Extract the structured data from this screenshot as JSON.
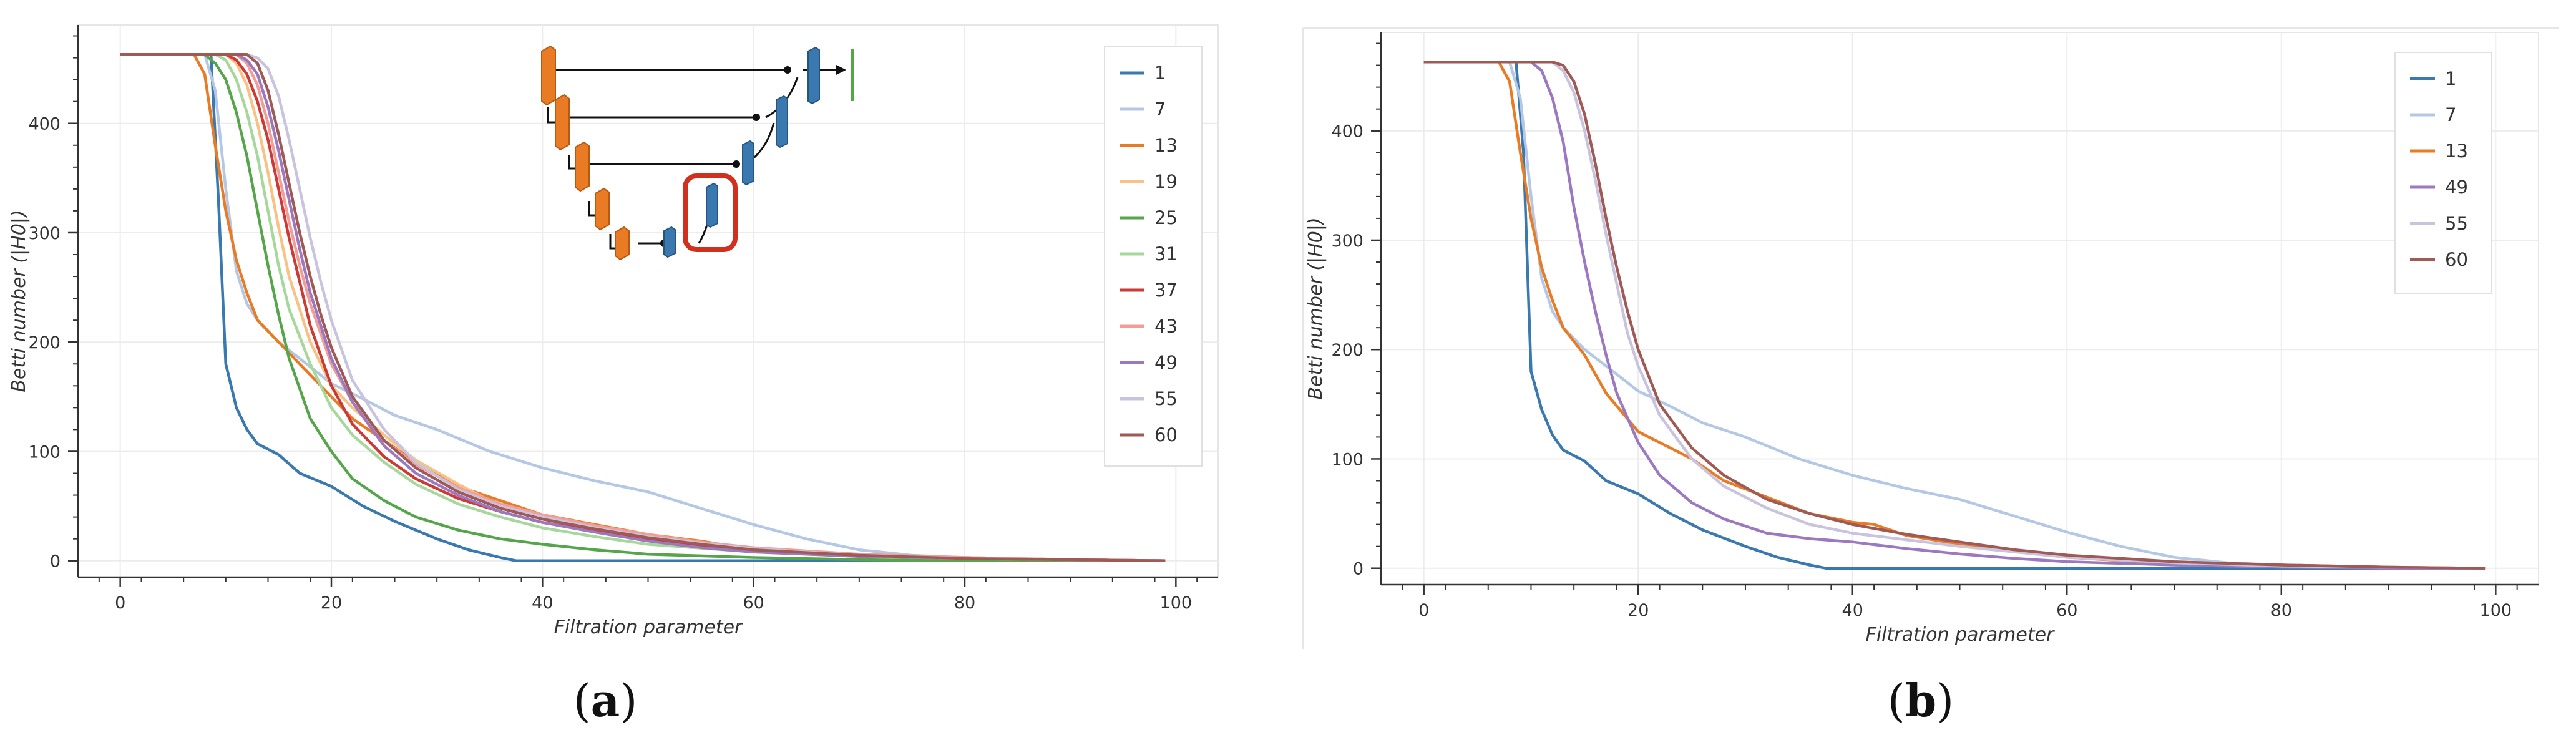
{
  "panels": [
    {
      "label_open": "(",
      "label_letter": "a",
      "label_close": ")"
    },
    {
      "label_open": "(",
      "label_letter": "b",
      "label_close": ")"
    }
  ],
  "colors": {
    "1": "#3a78b0",
    "7": "#b4c8e6",
    "13": "#e87b24",
    "19": "#f8c285",
    "25": "#55a64a",
    "31": "#a7d89b",
    "37": "#cc3a35",
    "43": "#f29e98",
    "49": "#9b78c0",
    "55": "#c9c3de",
    "60": "#a05a55"
  },
  "chart_data": [
    {
      "type": "line",
      "xlabel": "Filtration parameter",
      "ylabel": "Betti number (|H0|)",
      "xlim": [
        -4,
        104
      ],
      "ylim": [
        -15,
        490
      ],
      "xticks": [
        0,
        20,
        40,
        60,
        80,
        100
      ],
      "yticks": [
        0,
        100,
        200,
        300,
        400
      ],
      "grid": true,
      "legend": "top-right",
      "inset": "network-architecture-diagram",
      "series": [
        {
          "name": "1",
          "x": [
            0,
            8,
            8.6,
            9.3,
            10,
            11,
            12,
            13,
            15,
            17,
            20,
            23,
            26,
            30,
            33,
            36,
            37.5,
            40,
            50,
            60,
            80,
            99
          ],
          "y": [
            463,
            463,
            463,
            330,
            180,
            140,
            120,
            107,
            97,
            80,
            68,
            50,
            36,
            20,
            10,
            3,
            0,
            0,
            0,
            0,
            0,
            0
          ]
        },
        {
          "name": "7",
          "x": [
            0,
            8,
            9,
            10,
            11,
            12,
            13,
            14,
            15,
            17,
            20,
            23,
            26,
            30,
            35,
            40,
            45,
            50,
            55,
            60,
            65,
            70,
            75,
            80,
            90,
            99
          ],
          "y": [
            463,
            463,
            430,
            340,
            265,
            235,
            220,
            210,
            200,
            185,
            162,
            148,
            133,
            120,
            100,
            85,
            73,
            63,
            48,
            33,
            20,
            10,
            5,
            3,
            1,
            0
          ]
        },
        {
          "name": "13",
          "x": [
            0,
            7,
            8,
            9,
            10,
            11,
            12,
            13,
            15,
            17,
            20,
            22,
            25,
            28,
            32,
            36,
            40,
            45,
            50,
            55,
            60,
            65,
            70,
            80,
            90,
            99
          ],
          "y": [
            463,
            463,
            445,
            380,
            320,
            275,
            245,
            220,
            200,
            180,
            150,
            130,
            110,
            90,
            68,
            55,
            42,
            33,
            24,
            18,
            10,
            7,
            5,
            3,
            1,
            0
          ]
        },
        {
          "name": "19",
          "x": [
            0,
            10,
            11,
            12,
            13,
            14,
            15,
            16,
            18,
            20,
            22,
            25,
            28,
            32,
            36,
            40,
            45,
            50,
            55,
            60,
            70,
            80,
            90,
            99
          ],
          "y": [
            463,
            463,
            455,
            435,
            400,
            355,
            305,
            260,
            200,
            160,
            140,
            115,
            92,
            70,
            50,
            38,
            28,
            20,
            14,
            10,
            5,
            3,
            1,
            0
          ]
        },
        {
          "name": "25",
          "x": [
            0,
            8,
            9,
            10,
            11,
            12,
            13,
            14,
            15,
            16,
            18,
            20,
            22,
            25,
            28,
            32,
            36,
            40,
            45,
            50,
            60,
            70,
            80,
            90,
            99
          ],
          "y": [
            463,
            463,
            455,
            440,
            410,
            370,
            320,
            270,
            225,
            185,
            130,
            100,
            75,
            55,
            40,
            28,
            20,
            15,
            10,
            6,
            3,
            1,
            0,
            0,
            0
          ]
        },
        {
          "name": "31",
          "x": [
            0,
            9,
            10,
            11,
            12,
            13,
            14,
            15,
            16,
            18,
            20,
            22,
            25,
            28,
            32,
            36,
            40,
            45,
            50,
            60,
            70,
            80,
            90,
            99
          ],
          "y": [
            463,
            463,
            458,
            440,
            410,
            370,
            320,
            270,
            230,
            180,
            140,
            115,
            90,
            70,
            52,
            40,
            30,
            22,
            15,
            8,
            4,
            2,
            1,
            0
          ]
        },
        {
          "name": "37",
          "x": [
            0,
            10,
            11,
            12,
            13,
            14,
            15,
            16,
            17,
            18,
            20,
            22,
            25,
            28,
            32,
            36,
            40,
            45,
            50,
            55,
            60,
            70,
            80,
            90,
            99
          ],
          "y": [
            463,
            463,
            458,
            445,
            420,
            385,
            340,
            295,
            255,
            215,
            160,
            125,
            95,
            75,
            57,
            45,
            35,
            27,
            20,
            14,
            9,
            5,
            2,
            1,
            0
          ]
        },
        {
          "name": "43",
          "x": [
            0,
            11,
            12,
            13,
            14,
            15,
            16,
            17,
            18,
            20,
            22,
            25,
            28,
            32,
            36,
            40,
            45,
            50,
            55,
            60,
            70,
            80,
            90,
            99
          ],
          "y": [
            463,
            463,
            455,
            435,
            400,
            355,
            310,
            270,
            235,
            180,
            145,
            110,
            88,
            67,
            52,
            42,
            32,
            24,
            17,
            12,
            6,
            3,
            1,
            0
          ]
        },
        {
          "name": "49",
          "x": [
            0,
            11,
            12,
            13,
            14,
            15,
            16,
            17,
            18,
            20,
            22,
            25,
            28,
            32,
            36,
            40,
            45,
            50,
            55,
            60,
            70,
            80,
            90,
            99
          ],
          "y": [
            463,
            463,
            458,
            445,
            415,
            375,
            330,
            285,
            245,
            185,
            145,
            105,
            80,
            60,
            45,
            35,
            26,
            18,
            12,
            8,
            4,
            2,
            1,
            0
          ]
        },
        {
          "name": "55",
          "x": [
            0,
            12,
            13,
            14,
            15,
            16,
            17,
            18,
            19,
            20,
            22,
            25,
            28,
            32,
            36,
            40,
            45,
            50,
            55,
            60,
            70,
            80,
            90,
            99
          ],
          "y": [
            463,
            463,
            460,
            450,
            425,
            385,
            340,
            295,
            255,
            220,
            165,
            120,
            90,
            65,
            50,
            40,
            30,
            22,
            16,
            11,
            5,
            2,
            1,
            0
          ]
        },
        {
          "name": "60",
          "x": [
            0,
            12,
            13,
            14,
            15,
            16,
            17,
            18,
            19,
            20,
            22,
            25,
            28,
            32,
            36,
            40,
            45,
            50,
            55,
            60,
            70,
            80,
            90,
            99
          ],
          "y": [
            463,
            463,
            455,
            430,
            390,
            345,
            300,
            260,
            225,
            195,
            150,
            110,
            85,
            63,
            48,
            38,
            29,
            21,
            15,
            10,
            5,
            2,
            1,
            0
          ]
        }
      ]
    },
    {
      "type": "line",
      "xlabel": "Filtration parameter",
      "ylabel": "Betti number (|H0|)",
      "xlim": [
        -4,
        104
      ],
      "ylim": [
        -15,
        490
      ],
      "xticks": [
        0,
        20,
        40,
        60,
        80,
        100
      ],
      "yticks": [
        0,
        100,
        200,
        300,
        400
      ],
      "grid": true,
      "legend": "top-right",
      "series": [
        {
          "name": "1",
          "x": [
            0,
            8,
            8.6,
            9.3,
            10,
            11,
            12,
            13,
            15,
            17,
            20,
            23,
            26,
            30,
            33,
            36,
            37.5,
            40,
            50,
            60,
            80,
            99
          ],
          "y": [
            463,
            463,
            463,
            380,
            180,
            145,
            122,
            108,
            98,
            80,
            68,
            50,
            35,
            20,
            10,
            3,
            0,
            0,
            0,
            0,
            0,
            0
          ]
        },
        {
          "name": "7",
          "x": [
            0,
            8,
            9,
            10,
            11,
            12,
            13,
            14,
            15,
            17,
            20,
            23,
            26,
            30,
            35,
            40,
            45,
            50,
            55,
            60,
            65,
            70,
            75,
            80,
            90,
            99
          ],
          "y": [
            463,
            463,
            430,
            340,
            265,
            235,
            220,
            210,
            200,
            185,
            162,
            148,
            133,
            120,
            100,
            85,
            73,
            63,
            48,
            33,
            20,
            10,
            5,
            3,
            1,
            0
          ]
        },
        {
          "name": "13",
          "x": [
            0,
            7,
            8,
            9,
            10,
            11,
            12,
            13,
            15,
            17,
            20,
            22,
            25,
            28,
            32,
            36,
            40,
            42,
            45,
            50,
            55,
            60,
            65,
            70,
            80,
            90,
            99
          ],
          "y": [
            463,
            463,
            445,
            380,
            320,
            275,
            245,
            220,
            195,
            160,
            125,
            115,
            100,
            80,
            65,
            50,
            42,
            40,
            30,
            22,
            16,
            10,
            7,
            5,
            3,
            1,
            0
          ]
        },
        {
          "name": "49",
          "x": [
            0,
            10,
            11,
            12,
            13,
            14,
            15,
            16,
            17,
            18,
            20,
            22,
            25,
            28,
            32,
            36,
            40,
            45,
            50,
            55,
            60,
            70,
            80,
            90,
            99
          ],
          "y": [
            463,
            463,
            455,
            430,
            390,
            330,
            280,
            235,
            195,
            160,
            115,
            85,
            60,
            45,
            32,
            27,
            24,
            18,
            13,
            9,
            6,
            3,
            1,
            0,
            0
          ]
        },
        {
          "name": "55",
          "x": [
            0,
            12,
            13,
            14,
            15,
            16,
            17,
            18,
            19,
            20,
            22,
            25,
            28,
            32,
            36,
            40,
            45,
            50,
            55,
            60,
            70,
            80,
            90,
            99
          ],
          "y": [
            463,
            463,
            455,
            435,
            400,
            355,
            305,
            260,
            215,
            185,
            140,
            100,
            75,
            55,
            40,
            32,
            26,
            20,
            15,
            10,
            5,
            2,
            1,
            0
          ]
        },
        {
          "name": "60",
          "x": [
            0,
            12,
            13,
            14,
            15,
            16,
            17,
            18,
            19,
            20,
            22,
            25,
            28,
            32,
            36,
            40,
            45,
            50,
            55,
            60,
            70,
            80,
            90,
            99
          ],
          "y": [
            463,
            463,
            460,
            445,
            415,
            370,
            320,
            275,
            235,
            200,
            150,
            110,
            85,
            63,
            50,
            40,
            31,
            24,
            17,
            12,
            6,
            3,
            1,
            0
          ]
        }
      ]
    }
  ]
}
